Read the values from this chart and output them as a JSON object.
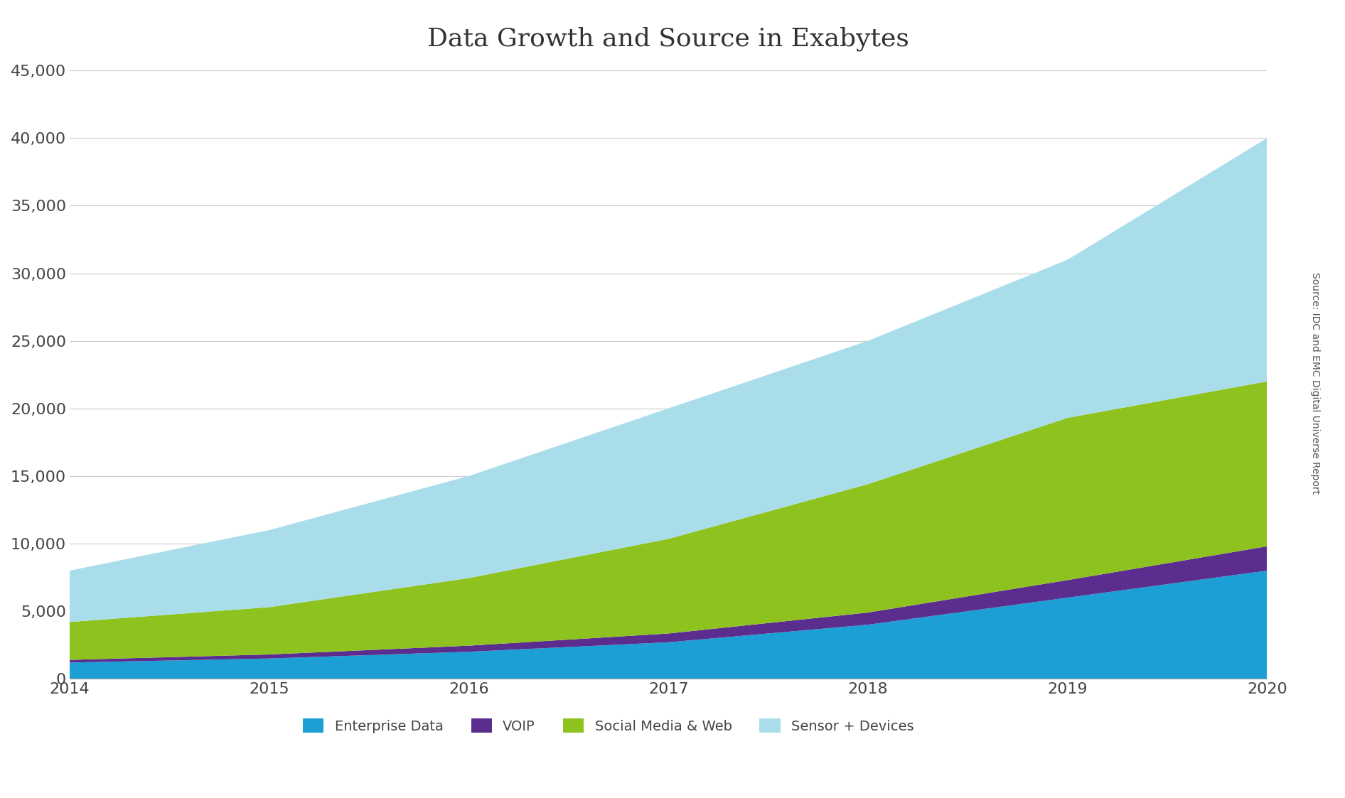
{
  "years": [
    2014,
    2015,
    2016,
    2017,
    2018,
    2019,
    2020
  ],
  "enterprise_data": [
    1200,
    1500,
    2000,
    2700,
    4000,
    6000,
    8000
  ],
  "voip": [
    200,
    300,
    450,
    650,
    900,
    1300,
    1800
  ],
  "social_media_web": [
    2800,
    3500,
    5000,
    7000,
    9500,
    12000,
    12200
  ],
  "sensor_devices": [
    3800,
    5700,
    7550,
    9650,
    10600,
    11700,
    18000
  ],
  "colors": {
    "enterprise_data": "#1b9fd4",
    "voip": "#5b2d8e",
    "social_media_web": "#8dc21f",
    "sensor_devices": "#aaddea"
  },
  "title": "Data Growth and Source in Exabytes",
  "title_fontsize": 26,
  "legend_labels": [
    "Enterprise Data",
    "VOIP",
    "Social Media & Web",
    "Sensor + Devices"
  ],
  "ylim": [
    0,
    45000
  ],
  "yticks": [
    0,
    5000,
    10000,
    15000,
    20000,
    25000,
    30000,
    35000,
    40000,
    45000
  ],
  "source_text": "Source: IDC and EMC Digital Universe Report",
  "background_color": "#ffffff"
}
